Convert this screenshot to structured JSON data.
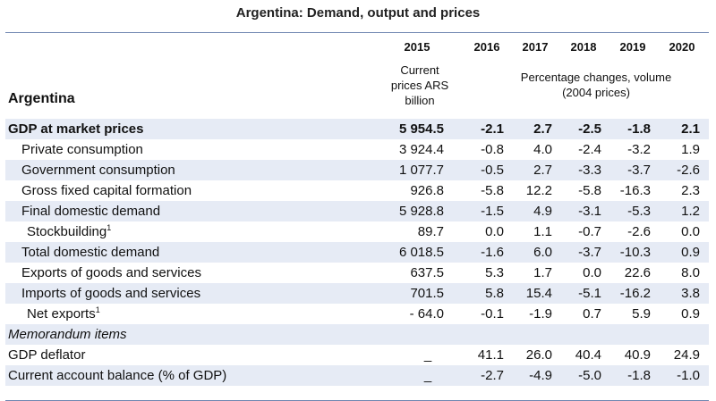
{
  "title": "Argentina: Demand, output and prices",
  "header": {
    "years": [
      "2015",
      "2016",
      "2017",
      "2018",
      "2019",
      "2020"
    ],
    "current_prices_label": "Current prices ARS billion",
    "current_prices_lines": [
      "Current",
      "prices ARS",
      "billion"
    ],
    "pct_change_lines": [
      "Percentage changes, volume",
      "(2004 prices)"
    ],
    "country": "Argentina"
  },
  "rows": [
    {
      "label": "GDP at market prices",
      "values": [
        "5 954.5",
        "-2.1",
        "2.7",
        "-2.5",
        "-1.8",
        "2.1"
      ]
    },
    {
      "label": "Private consumption",
      "values": [
        "3 924.4",
        "-0.8",
        "4.0",
        "-2.4",
        "-3.2",
        "1.9"
      ]
    },
    {
      "label": "Government consumption",
      "values": [
        "1 077.7",
        "-0.5",
        "2.7",
        "-3.3",
        "-3.7",
        "-2.6"
      ]
    },
    {
      "label": "Gross fixed capital formation",
      "values": [
        "926.8",
        "-5.8",
        "12.2",
        "-5.8",
        "-16.3",
        "2.3"
      ]
    },
    {
      "label": "Final domestic demand",
      "values": [
        "5 928.8",
        "-1.5",
        "4.9",
        "-3.1",
        "-5.3",
        "1.2"
      ]
    },
    {
      "label": "Stockbuilding",
      "sup": "1",
      "values": [
        "89.7",
        "0.0",
        "1.1",
        "-0.7",
        "-2.6",
        "0.0"
      ]
    },
    {
      "label": "Total domestic demand",
      "values": [
        "6 018.5",
        "-1.6",
        "6.0",
        "-3.7",
        "-10.3",
        "0.9"
      ]
    },
    {
      "label": "Exports of goods and services",
      "values": [
        "637.5",
        "5.3",
        "1.7",
        "0.0",
        "22.6",
        "8.0"
      ]
    },
    {
      "label": "Imports of goods and services",
      "values": [
        "701.5",
        "5.8",
        "15.4",
        "-5.1",
        "-16.2",
        "3.8"
      ]
    },
    {
      "label": "Net exports",
      "sup": "1",
      "values": [
        "- 64.0",
        "-0.1",
        "-1.9",
        "0.7",
        "5.9",
        "0.9"
      ]
    },
    {
      "label": "Memorandum items"
    },
    {
      "label": "GDP deflator",
      "values": [
        "_",
        "41.1",
        "26.0",
        "40.4",
        "40.9",
        "24.9"
      ]
    },
    {
      "label": "Current account balance (% of GDP)",
      "values": [
        "_",
        "-2.7",
        "-4.9",
        "-5.0",
        "-1.8",
        "-1.0"
      ]
    }
  ]
}
